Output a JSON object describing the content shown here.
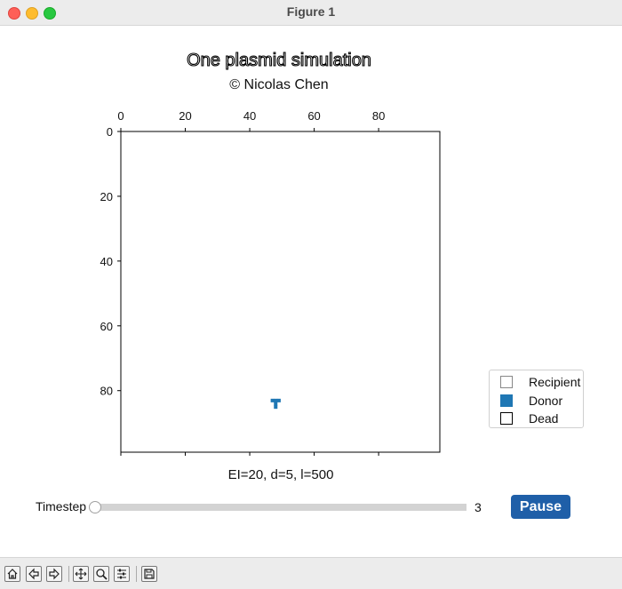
{
  "window": {
    "title": "Figure 1"
  },
  "figure": {
    "title": "One plasmid simulation",
    "subtitle": "© Nicolas Chen",
    "xlabel": "EI=20, d=5, l=500"
  },
  "chart_data": {
    "type": "heatmap",
    "title": "One plasmid simulation",
    "subtitle": "© Nicolas Chen",
    "xlabel": "EI=20, d=5, l=500",
    "xlim": [
      0,
      99
    ],
    "ylim": [
      99,
      0
    ],
    "x_ticks": [
      0,
      20,
      40,
      60,
      80
    ],
    "y_ticks": [
      0,
      20,
      40,
      60,
      80
    ],
    "x_axis_position": "top",
    "grid": false,
    "legend_position": "right",
    "legend": [
      {
        "name": "Recipient",
        "fill": "#ffffff",
        "edge": "#888888"
      },
      {
        "name": "Donor",
        "fill": "#1f77b4",
        "edge": "#1f77b4"
      },
      {
        "name": "Dead",
        "fill": "#ffffff",
        "edge": "#000000"
      }
    ],
    "donor_cells": [
      {
        "x": 47,
        "y": 83
      },
      {
        "x": 48,
        "y": 83
      },
      {
        "x": 49,
        "y": 83
      },
      {
        "x": 48,
        "y": 84
      },
      {
        "x": 48,
        "y": 85
      }
    ]
  },
  "slider": {
    "label": "Timestep",
    "value": "3",
    "fraction": 0.0
  },
  "pause_button": {
    "label": "Pause"
  },
  "toolbar": {
    "items": [
      "home-icon",
      "back-icon",
      "forward-icon",
      "pan-icon",
      "zoom-icon",
      "configure-subplots-icon",
      "save-icon"
    ]
  },
  "colors": {
    "donor": "#1f77b4",
    "pause_button": "#1f5fa8"
  }
}
